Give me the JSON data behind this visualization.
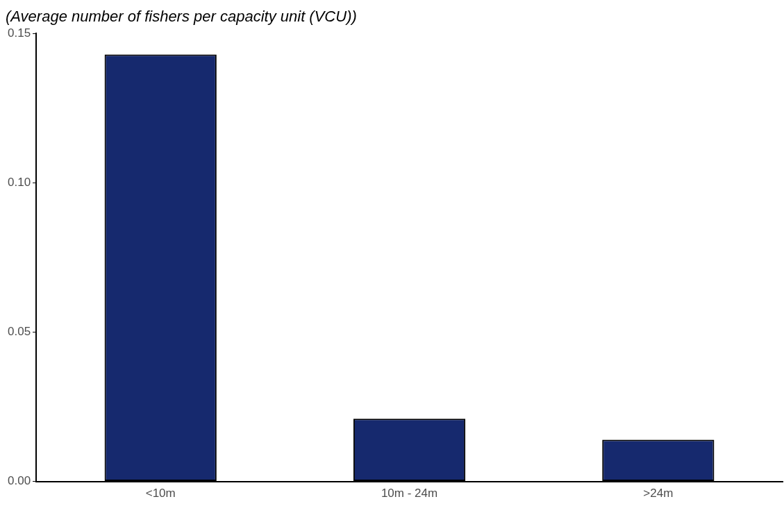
{
  "chart_data": {
    "type": "bar",
    "title": "(Average number of fishers per capacity unit (VCU))",
    "categories": [
      "<10m",
      "10m - 24m",
      ">24m"
    ],
    "values": [
      0.143,
      0.021,
      0.014
    ],
    "color": "#16296e",
    "ylim": [
      0,
      0.15
    ],
    "yticks": [
      {
        "value": 0,
        "label": "0.00"
      },
      {
        "value": 0.05,
        "label": "0.05"
      },
      {
        "value": 0.1,
        "label": "0.10"
      },
      {
        "value": 0.15,
        "label": "0.15"
      }
    ],
    "grid": false,
    "legend": false
  }
}
